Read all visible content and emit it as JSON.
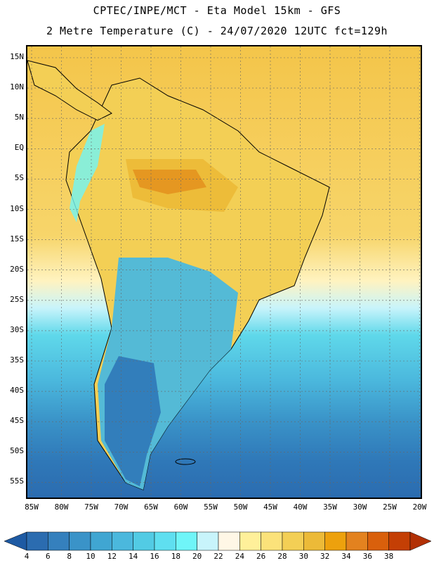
{
  "header": {
    "line1": "CPTEC/INPE/MCT -  Eta Model 15km - GFS",
    "line2": "2 Metre Temperature (C) - 24/07/2020 12UTC fct=129h"
  },
  "axes": {
    "lat_labels": [
      "15N",
      "10N",
      "5N",
      "EQ",
      "5S",
      "10S",
      "15S",
      "20S",
      "25S",
      "30S",
      "35S",
      "40S",
      "45S",
      "50S",
      "55S"
    ],
    "lon_labels": [
      "85W",
      "80W",
      "75W",
      "70W",
      "65W",
      "60W",
      "55W",
      "50W",
      "45W",
      "40W",
      "35W",
      "30W",
      "25W",
      "20W"
    ]
  },
  "legend": {
    "values": [
      "4",
      "6",
      "8",
      "10",
      "12",
      "14",
      "16",
      "18",
      "20",
      "22",
      "24",
      "26",
      "28",
      "30",
      "32",
      "34",
      "36",
      "38"
    ],
    "colors": [
      "#2b6cb0",
      "#3580bd",
      "#3a93c8",
      "#40a6d2",
      "#4bb8dd",
      "#52cbe4",
      "#5fdff0",
      "#6ff5f8",
      "#c8f4fb",
      "#fff7e6",
      "#fff09a",
      "#fbe27a",
      "#f3cf55",
      "#ecba38",
      "#eda10d",
      "#e3821f",
      "#d9600c",
      "#c43f05"
    ],
    "low_arrow_color": "#1e5aa3",
    "high_arrow_color": "#b23005"
  }
}
